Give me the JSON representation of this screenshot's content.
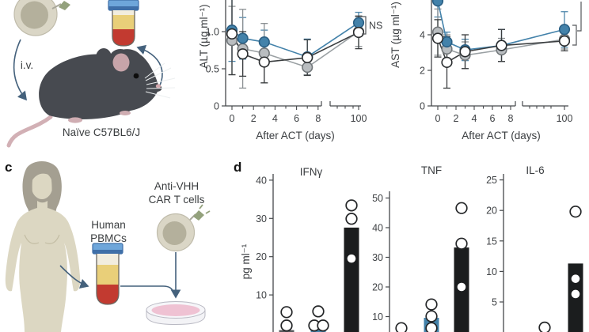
{
  "panels": {
    "c": "c",
    "d": "d"
  },
  "panel_a": {
    "iv_label": "i.v.",
    "caption": "Naïve C57BL6/J",
    "icons": [
      "car-t-cell-icon",
      "iv-arrow",
      "mouse-icon",
      "blood-tube-icon",
      "blood-draw-arrow"
    ]
  },
  "panel_c": {
    "pbmc_label": "Human\nPBMCs",
    "car_t_label": "Anti-VHH\nCAR T cells",
    "icons": [
      "woman-silhouette",
      "blood-tube-icon",
      "car-t-cell-icon",
      "petri-dish-icon",
      "arrows"
    ]
  },
  "colors": {
    "series": {
      "blue": {
        "fill": "#4382aa",
        "stroke": "#2a5f84",
        "line": "#4382aa",
        "err": "#4f87ab"
      },
      "gray": {
        "fill": "#b9bdc0",
        "stroke": "#72777a",
        "line": "#9aa0a3",
        "err": "#8b9093"
      },
      "open": {
        "fill": "#ffffff",
        "stroke": "#2a2d2f",
        "line": "#3a3d3f",
        "err": "#3a3d3f"
      }
    },
    "bars": {
      "black": "#1b1d1e",
      "blue": "#4382aa",
      "gray": "#55585b"
    },
    "axis": "#46494c",
    "arrow": "#44617c"
  },
  "chart_data": [
    {
      "id": "alt",
      "type": "line",
      "ylabel": "ALT (µg ml⁻¹)",
      "xlabel": "After ACT (days)",
      "yticks": [
        0,
        0.5,
        1.0
      ],
      "ytick_labels": [
        "0",
        "0.5",
        "1.0"
      ],
      "ylim": [
        0,
        1.45
      ],
      "xtick_labels": [
        "0",
        "2",
        "4",
        "6",
        "8",
        "100"
      ],
      "x_break_after": 8,
      "annotation": "NS",
      "x": [
        0,
        1,
        3,
        7,
        100
      ],
      "series": [
        {
          "name": "blue-filled",
          "style": "blue",
          "values": [
            1.02,
            0.91,
            0.86,
            0.66,
            1.12
          ],
          "err": [
            0.42,
            0.28,
            0.16,
            0.24,
            0.14
          ]
        },
        {
          "name": "gray-filled",
          "style": "gray",
          "values": [
            0.88,
            0.77,
            0.71,
            0.52,
            1.0
          ],
          "err": [
            0.46,
            0.53,
            0.4,
            0.1,
            0.2
          ]
        },
        {
          "name": "open-circle",
          "style": "open",
          "values": [
            0.97,
            0.7,
            0.59,
            0.65,
            0.99
          ],
          "err": [
            0.55,
            0.3,
            0.28,
            0.24,
            0.22
          ]
        }
      ]
    },
    {
      "id": "ast",
      "type": "line",
      "ylabel": "AST (µg ml⁻¹)",
      "xlabel": "After ACT (days)",
      "yticks": [
        0,
        2,
        4
      ],
      "ytick_labels": [
        "0",
        "2",
        "4"
      ],
      "ylim": [
        0,
        6.1
      ],
      "xtick_labels": [
        "0",
        "2",
        "4",
        "6",
        "8",
        "100"
      ],
      "x_break_after": 8,
      "annotation": "",
      "x": [
        0,
        1,
        3,
        7,
        100
      ],
      "series": [
        {
          "name": "blue-filled",
          "style": "blue",
          "values": [
            5.9,
            3.6,
            3.15,
            3.4,
            4.3
          ],
          "err": [
            0.9,
            0.55,
            0.6,
            0.9,
            1.0
          ]
        },
        {
          "name": "gray-filled",
          "style": "gray",
          "values": [
            4.15,
            3.2,
            2.85,
            3.15,
            3.75
          ],
          "err": [
            1.3,
            0.8,
            0.75,
            0.65,
            0.55
          ]
        },
        {
          "name": "open-circle",
          "style": "open",
          "values": [
            3.8,
            2.45,
            3.05,
            3.4,
            3.65
          ],
          "err": [
            1.05,
            1.45,
            0.95,
            0.9,
            0.55
          ]
        }
      ]
    },
    {
      "id": "ifng",
      "type": "bar-scatter",
      "title": "IFNγ",
      "ylabel": "pg ml⁻¹",
      "yticks": [
        10,
        20,
        30,
        40
      ],
      "ylim": [
        0,
        42
      ],
      "groups": [
        {
          "bar": 0.8,
          "bar_style": "gray",
          "points": [
            {
              "v": 5.5,
              "s": "open",
              "dx": 0
            },
            {
              "v": 2.0,
              "s": "open",
              "dx": 0
            }
          ]
        },
        {
          "bar": 2.4,
          "bar_style": "blue",
          "points": [
            {
              "v": 5.7,
              "s": "open",
              "dx": 0
            },
            {
              "v": 2.0,
              "s": "open",
              "dx": -5
            },
            {
              "v": 2.0,
              "s": "open",
              "dx": 6
            }
          ]
        },
        {
          "bar": 27.6,
          "bar_style": "black",
          "points": [
            {
              "v": 33.4,
              "s": "open",
              "dx": 0
            },
            {
              "v": 29.9,
              "s": "open",
              "dx": 0
            },
            {
              "v": 19.5,
              "s": "dot",
              "dx": 0
            }
          ]
        }
      ]
    },
    {
      "id": "tnf",
      "type": "bar-scatter",
      "title": "TNF",
      "ylabel": "pg ml⁻¹",
      "yticks": [
        10,
        20,
        30,
        40,
        50
      ],
      "ylim": [
        0,
        52
      ],
      "groups": [
        {
          "bar": null,
          "bar_style": null,
          "points": [
            {
              "v": 6.1,
              "s": "open",
              "dx": 0
            }
          ]
        },
        {
          "bar": 9.6,
          "bar_style": "blue",
          "points": [
            {
              "v": 14.1,
              "s": "open",
              "dx": 0
            },
            {
              "v": 10.1,
              "s": "open",
              "dx": 0
            },
            {
              "v": 6.1,
              "s": "open",
              "dx": 0
            }
          ]
        },
        {
          "bar": 33.3,
          "bar_style": "black",
          "points": [
            {
              "v": 46.6,
              "s": "open",
              "dx": 0
            },
            {
              "v": 34.6,
              "s": "open",
              "dx": 0
            },
            {
              "v": 20.0,
              "s": "dot",
              "dx": 0
            }
          ]
        }
      ]
    },
    {
      "id": "il6",
      "type": "bar-scatter",
      "title": "IL-6",
      "ylabel": "pg ml⁻¹",
      "yticks": [
        5,
        10,
        15,
        20,
        25
      ],
      "ylim": [
        0,
        27
      ],
      "groups": [
        {
          "bar": null,
          "bar_style": null,
          "points": []
        },
        {
          "bar": null,
          "bar_style": null,
          "points": [
            {
              "v": 0.8,
              "s": "open",
              "dx": 0
            }
          ]
        },
        {
          "bar": 11.3,
          "bar_style": "black",
          "points": [
            {
              "v": 19.8,
              "s": "open",
              "dx": 0
            },
            {
              "v": 8.8,
              "s": "dot",
              "dx": 0
            },
            {
              "v": 6.3,
              "s": "dot",
              "dx": 0
            }
          ]
        }
      ]
    }
  ]
}
